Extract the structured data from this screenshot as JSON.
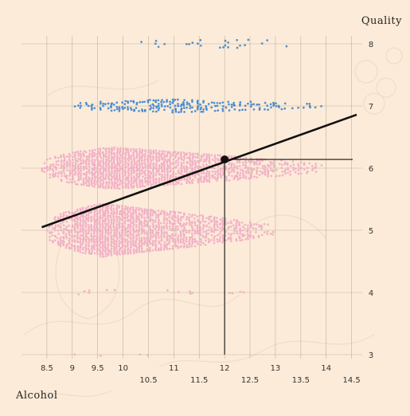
{
  "chart_data": {
    "type": "scatter",
    "xlabel": "Alcohol",
    "ylabel": "Quality",
    "xlim": [
      8.0,
      14.6
    ],
    "ylim": [
      2.9,
      8.4
    ],
    "x_ticks": [
      {
        "value": 8.5,
        "label": "8.5",
        "row": "upper"
      },
      {
        "value": 9,
        "label": "9",
        "row": "upper"
      },
      {
        "value": 9.5,
        "label": "9.5",
        "row": "upper"
      },
      {
        "value": 10,
        "label": "10",
        "row": "upper"
      },
      {
        "value": 10.5,
        "label": "10.5",
        "row": "lower"
      },
      {
        "value": 11,
        "label": "11",
        "row": "upper"
      },
      {
        "value": 11.5,
        "label": "11.5",
        "row": "lower"
      },
      {
        "value": 12,
        "label": "12",
        "row": "upper"
      },
      {
        "value": 12.5,
        "label": "12.5",
        "row": "lower"
      },
      {
        "value": 13,
        "label": "13",
        "row": "upper"
      },
      {
        "value": 13.5,
        "label": "13.5",
        "row": "lower"
      },
      {
        "value": 14,
        "label": "14",
        "row": "upper"
      },
      {
        "value": 14.5,
        "label": "14.5",
        "row": "lower"
      }
    ],
    "y_ticks": [
      3,
      4,
      5,
      6,
      7,
      8
    ],
    "grid": true,
    "series": [
      {
        "color": "#f0a8c4",
        "bands": [
          {
            "quality": 6,
            "x_min": 8.4,
            "x_max": 13.9,
            "peak": 9.8,
            "half_height": 0.33,
            "density": 1.0
          },
          {
            "quality": 5,
            "x_min": 8.5,
            "x_max": 13.0,
            "peak": 9.6,
            "half_height": 0.42,
            "density": 1.0
          },
          {
            "quality": 4,
            "x_min": 8.9,
            "x_max": 12.4,
            "peak": 10.0,
            "half_height": 0.04,
            "density": 0.12
          },
          {
            "quality": 3,
            "x_min": 9.0,
            "x_max": 12.0,
            "peak": 10.0,
            "half_height": 0.02,
            "density": 0.04
          }
        ]
      },
      {
        "color": "#2f7fd0",
        "bands": [
          {
            "quality": 7,
            "x_min": 9.0,
            "x_max": 14.0,
            "peak": 11.0,
            "half_height": 0.1,
            "density": 0.55
          },
          {
            "quality": 8,
            "x_min": 9.6,
            "x_max": 14.0,
            "peak": 12.5,
            "half_height": 0.06,
            "density": 0.08
          }
        ]
      }
    ],
    "trend_line": {
      "x": [
        8.4,
        14.6
      ],
      "y": [
        5.05,
        6.86
      ],
      "color": "#111111"
    },
    "highlight_point": {
      "x": 12.0,
      "y": 6.14
    }
  }
}
